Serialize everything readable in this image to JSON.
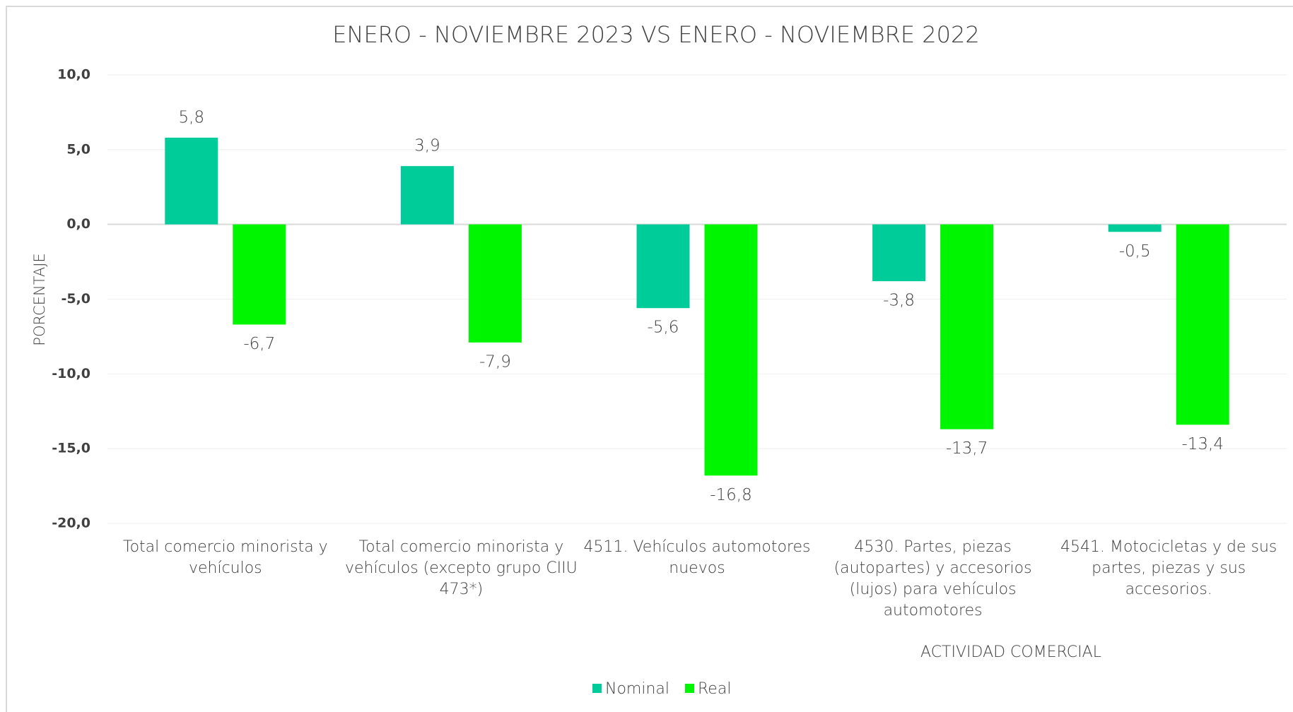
{
  "chart_data": {
    "type": "bar",
    "title": "ENERO - NOVIEMBRE 2023 VS ENERO - NOVIEMBRE 2022",
    "x_label": "ACTIVIDAD COMERCIAL",
    "y_label": "PORCENTAJE",
    "categories": [
      "Total comercio minorista y vehículos",
      "Total comercio minorista y vehículos  (excepto grupo CIIU 473*)",
      "4511. Vehículos automotores nuevos",
      "4530. Partes, piezas (autopartes) y accesorios (lujos) para vehículos automotores",
      "4541.  Motocicletas y de sus partes, piezas y sus accesorios."
    ],
    "series": [
      {
        "name": "Nominal",
        "color": "#00cc99",
        "values": [
          5.8,
          3.9,
          -5.6,
          -3.8,
          -0.5
        ],
        "value_labels": [
          "5,8",
          "3,9",
          "-5,6",
          "-3,8",
          "-0,5"
        ]
      },
      {
        "name": "Real",
        "color": "#00f500",
        "values": [
          -6.7,
          -7.9,
          -16.8,
          -13.7,
          -13.4
        ],
        "value_labels": [
          "-6,7",
          "-7,9",
          "-16,8",
          "-13,7",
          "-13,4"
        ]
      }
    ],
    "ylim": [
      -20,
      10
    ],
    "yticks": [
      {
        "value": -20,
        "label": "-20,0"
      },
      {
        "value": -15,
        "label": "-15,0"
      },
      {
        "value": -10,
        "label": "-10,0"
      },
      {
        "value": -5,
        "label": "-5,0"
      },
      {
        "value": 0,
        "label": "0,0"
      },
      {
        "value": 5,
        "label": "5,0"
      },
      {
        "value": 10,
        "label": "10,0"
      }
    ],
    "grid": true,
    "legend": "bottom"
  }
}
